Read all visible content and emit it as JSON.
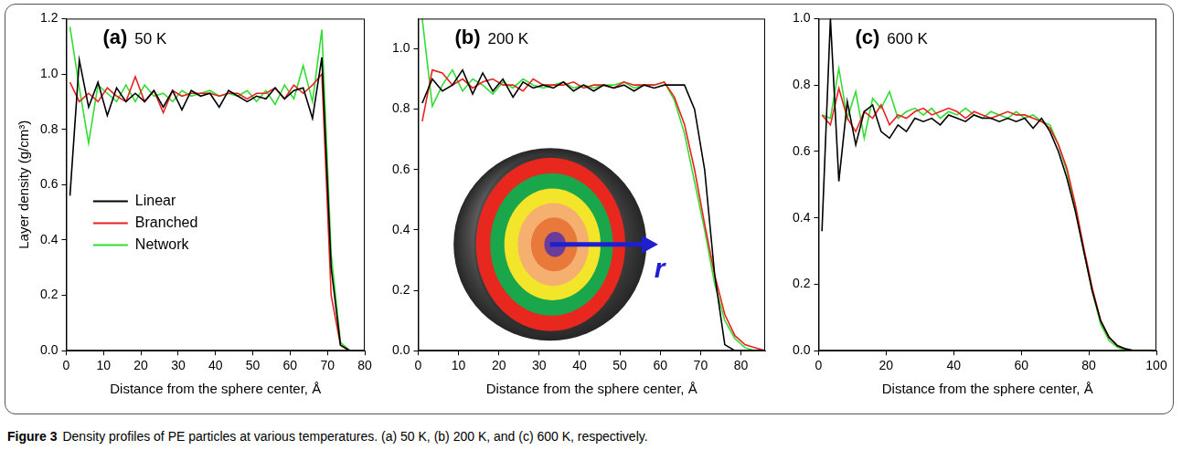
{
  "caption_label": "Figure 3",
  "caption": "Density profiles of PE particles at various temperatures. (a) 50 K, (b) 200 K, and (c) 600 K, respectively.",
  "chart_data": [
    {
      "type": "line",
      "panel_label": "(a)",
      "title": "50 K",
      "x_label": "Distance from the sphere center, Å",
      "y_label": "Layer density (g/cm³)",
      "xlim": [
        0,
        80
      ],
      "xticks": [
        0,
        10,
        20,
        30,
        40,
        50,
        60,
        70,
        80
      ],
      "ylim": [
        0,
        1.2
      ],
      "yticks": [
        {
          "value": 0,
          "label": "0.0"
        },
        0.2,
        0.4,
        0.6,
        0.8,
        {
          "value": 1,
          "label": "1.0"
        },
        1.2
      ],
      "grid": false,
      "legend": "left",
      "x": [
        1,
        3.5,
        6,
        8.5,
        11,
        13.5,
        16,
        18.5,
        21,
        23.5,
        26,
        28.5,
        31,
        33.5,
        36,
        38.5,
        41,
        43.5,
        46,
        48.5,
        51,
        53.5,
        56,
        58.5,
        61,
        63.5,
        66,
        68.5,
        71,
        73.5,
        76
      ],
      "series": [
        {
          "name": "Linear",
          "color": "#000000",
          "values": [
            0.56,
            1.05,
            0.88,
            0.97,
            0.85,
            0.95,
            0.9,
            0.93,
            0.9,
            0.94,
            0.88,
            0.94,
            0.87,
            0.94,
            0.92,
            0.93,
            0.88,
            0.94,
            0.92,
            0.9,
            0.92,
            0.91,
            0.95,
            0.91,
            0.94,
            0.95,
            0.84,
            1.06,
            0.3,
            0.02,
            0
          ]
        },
        {
          "name": "Branched",
          "color": "#e8221e",
          "values": [
            0.97,
            0.9,
            0.93,
            0.9,
            0.95,
            0.92,
            0.9,
            0.99,
            0.9,
            0.94,
            0.86,
            0.94,
            0.92,
            0.93,
            0.93,
            0.93,
            0.92,
            0.93,
            0.93,
            0.91,
            0.93,
            0.93,
            0.95,
            0.91,
            0.96,
            0.93,
            0.96,
            1.0,
            0.2,
            0.02,
            0
          ]
        },
        {
          "name": "Network",
          "color": "#33dd33",
          "values": [
            1.17,
            0.95,
            0.75,
            0.96,
            0.93,
            0.9,
            0.96,
            0.9,
            0.96,
            0.92,
            0.93,
            0.9,
            0.94,
            0.92,
            0.93,
            0.94,
            0.92,
            0.93,
            0.92,
            0.94,
            0.9,
            0.94,
            0.89,
            0.96,
            0.91,
            1.03,
            0.9,
            1.16,
            0.35,
            0.03,
            0
          ]
        }
      ]
    },
    {
      "type": "line",
      "panel_label": "(b)",
      "title": "200 K",
      "x_label": "Distance from the sphere center, Å",
      "xlim": [
        0,
        86
      ],
      "xticks": [
        0,
        10,
        20,
        30,
        40,
        50,
        60,
        70,
        80
      ],
      "ylim": [
        0,
        1.1
      ],
      "yticks": [
        {
          "value": 0,
          "label": "0.0"
        },
        0.2,
        0.4,
        0.6,
        0.8,
        {
          "value": 1,
          "label": "1.0"
        }
      ],
      "grid": false,
      "annotations": [
        "r"
      ],
      "x": [
        1,
        3.5,
        6,
        8.5,
        11,
        13.5,
        16,
        18.5,
        21,
        23.5,
        26,
        28.5,
        31,
        33.5,
        36,
        38.5,
        41,
        43.5,
        46,
        48.5,
        51,
        53.5,
        56,
        58.5,
        61,
        63.5,
        66,
        68.5,
        71,
        73.5,
        76,
        78.5,
        81,
        83.5,
        86
      ],
      "series": [
        {
          "name": "Linear",
          "color": "#000000",
          "values": [
            0.82,
            0.9,
            0.86,
            0.88,
            0.93,
            0.85,
            0.92,
            0.86,
            0.9,
            0.84,
            0.89,
            0.87,
            0.88,
            0.87,
            0.89,
            0.86,
            0.88,
            0.86,
            0.88,
            0.87,
            0.88,
            0.86,
            0.88,
            0.87,
            0.88,
            0.88,
            0.88,
            0.8,
            0.6,
            0.25,
            0.02,
            0,
            0,
            0,
            0
          ]
        },
        {
          "name": "Branched",
          "color": "#e8221e",
          "values": [
            0.76,
            0.93,
            0.92,
            0.88,
            0.9,
            0.87,
            0.89,
            0.9,
            0.88,
            0.88,
            0.86,
            0.9,
            0.88,
            0.88,
            0.88,
            0.89,
            0.87,
            0.88,
            0.88,
            0.87,
            0.89,
            0.88,
            0.88,
            0.88,
            0.89,
            0.84,
            0.75,
            0.6,
            0.42,
            0.25,
            0.12,
            0.05,
            0.02,
            0.01,
            0
          ]
        },
        {
          "name": "Network",
          "color": "#33dd33",
          "values": [
            1.1,
            0.81,
            0.88,
            0.93,
            0.86,
            0.9,
            0.88,
            0.85,
            0.89,
            0.87,
            0.9,
            0.88,
            0.87,
            0.88,
            0.89,
            0.87,
            0.88,
            0.87,
            0.88,
            0.88,
            0.89,
            0.87,
            0.88,
            0.88,
            0.89,
            0.83,
            0.72,
            0.56,
            0.4,
            0.22,
            0.1,
            0.04,
            0.01,
            0,
            0
          ]
        }
      ]
    },
    {
      "type": "line",
      "panel_label": "(c)",
      "title": "600 K",
      "x_label": "Distance from the sphere center, Å",
      "xlim": [
        0,
        100
      ],
      "xticks": [
        0,
        20,
        40,
        60,
        80,
        100
      ],
      "ylim": [
        0,
        1
      ],
      "yticks": [
        {
          "value": 0,
          "label": "0.0"
        },
        0.2,
        0.4,
        0.6,
        0.8,
        {
          "value": 1,
          "label": "1.0"
        }
      ],
      "grid": false,
      "x": [
        1,
        3.5,
        6,
        8.5,
        11,
        13.5,
        16,
        18.5,
        21,
        23.5,
        26,
        28.5,
        31,
        33.5,
        36,
        38.5,
        41,
        43.5,
        46,
        48.5,
        51,
        53.5,
        56,
        58.5,
        61,
        63.5,
        66,
        68.5,
        71,
        73.5,
        76,
        78.5,
        81,
        83.5,
        86,
        88.5,
        91,
        93.5,
        96,
        98.5
      ],
      "series": [
        {
          "name": "Linear",
          "color": "#000000",
          "values": [
            0.36,
            1.0,
            0.51,
            0.75,
            0.62,
            0.72,
            0.74,
            0.66,
            0.64,
            0.68,
            0.66,
            0.7,
            0.69,
            0.7,
            0.68,
            0.71,
            0.7,
            0.69,
            0.71,
            0.7,
            0.7,
            0.69,
            0.7,
            0.69,
            0.7,
            0.67,
            0.7,
            0.66,
            0.6,
            0.52,
            0.42,
            0.3,
            0.18,
            0.09,
            0.04,
            0.015,
            0.005,
            0,
            0,
            0
          ]
        },
        {
          "name": "Branched",
          "color": "#e8221e",
          "values": [
            0.71,
            0.68,
            0.79,
            0.7,
            0.66,
            0.72,
            0.7,
            0.74,
            0.68,
            0.71,
            0.7,
            0.72,
            0.73,
            0.71,
            0.72,
            0.73,
            0.72,
            0.7,
            0.72,
            0.71,
            0.7,
            0.71,
            0.72,
            0.71,
            0.71,
            0.7,
            0.69,
            0.67,
            0.62,
            0.55,
            0.44,
            0.31,
            0.19,
            0.09,
            0.04,
            0.015,
            0.005,
            0,
            0,
            0
          ]
        },
        {
          "name": "Network",
          "color": "#33dd33",
          "values": [
            0.71,
            0.7,
            0.85,
            0.7,
            0.78,
            0.64,
            0.76,
            0.73,
            0.78,
            0.7,
            0.72,
            0.73,
            0.71,
            0.73,
            0.7,
            0.72,
            0.71,
            0.73,
            0.71,
            0.7,
            0.72,
            0.71,
            0.7,
            0.72,
            0.7,
            0.71,
            0.69,
            0.68,
            0.62,
            0.54,
            0.43,
            0.3,
            0.18,
            0.08,
            0.03,
            0.01,
            0,
            0,
            0,
            0
          ]
        }
      ]
    }
  ]
}
